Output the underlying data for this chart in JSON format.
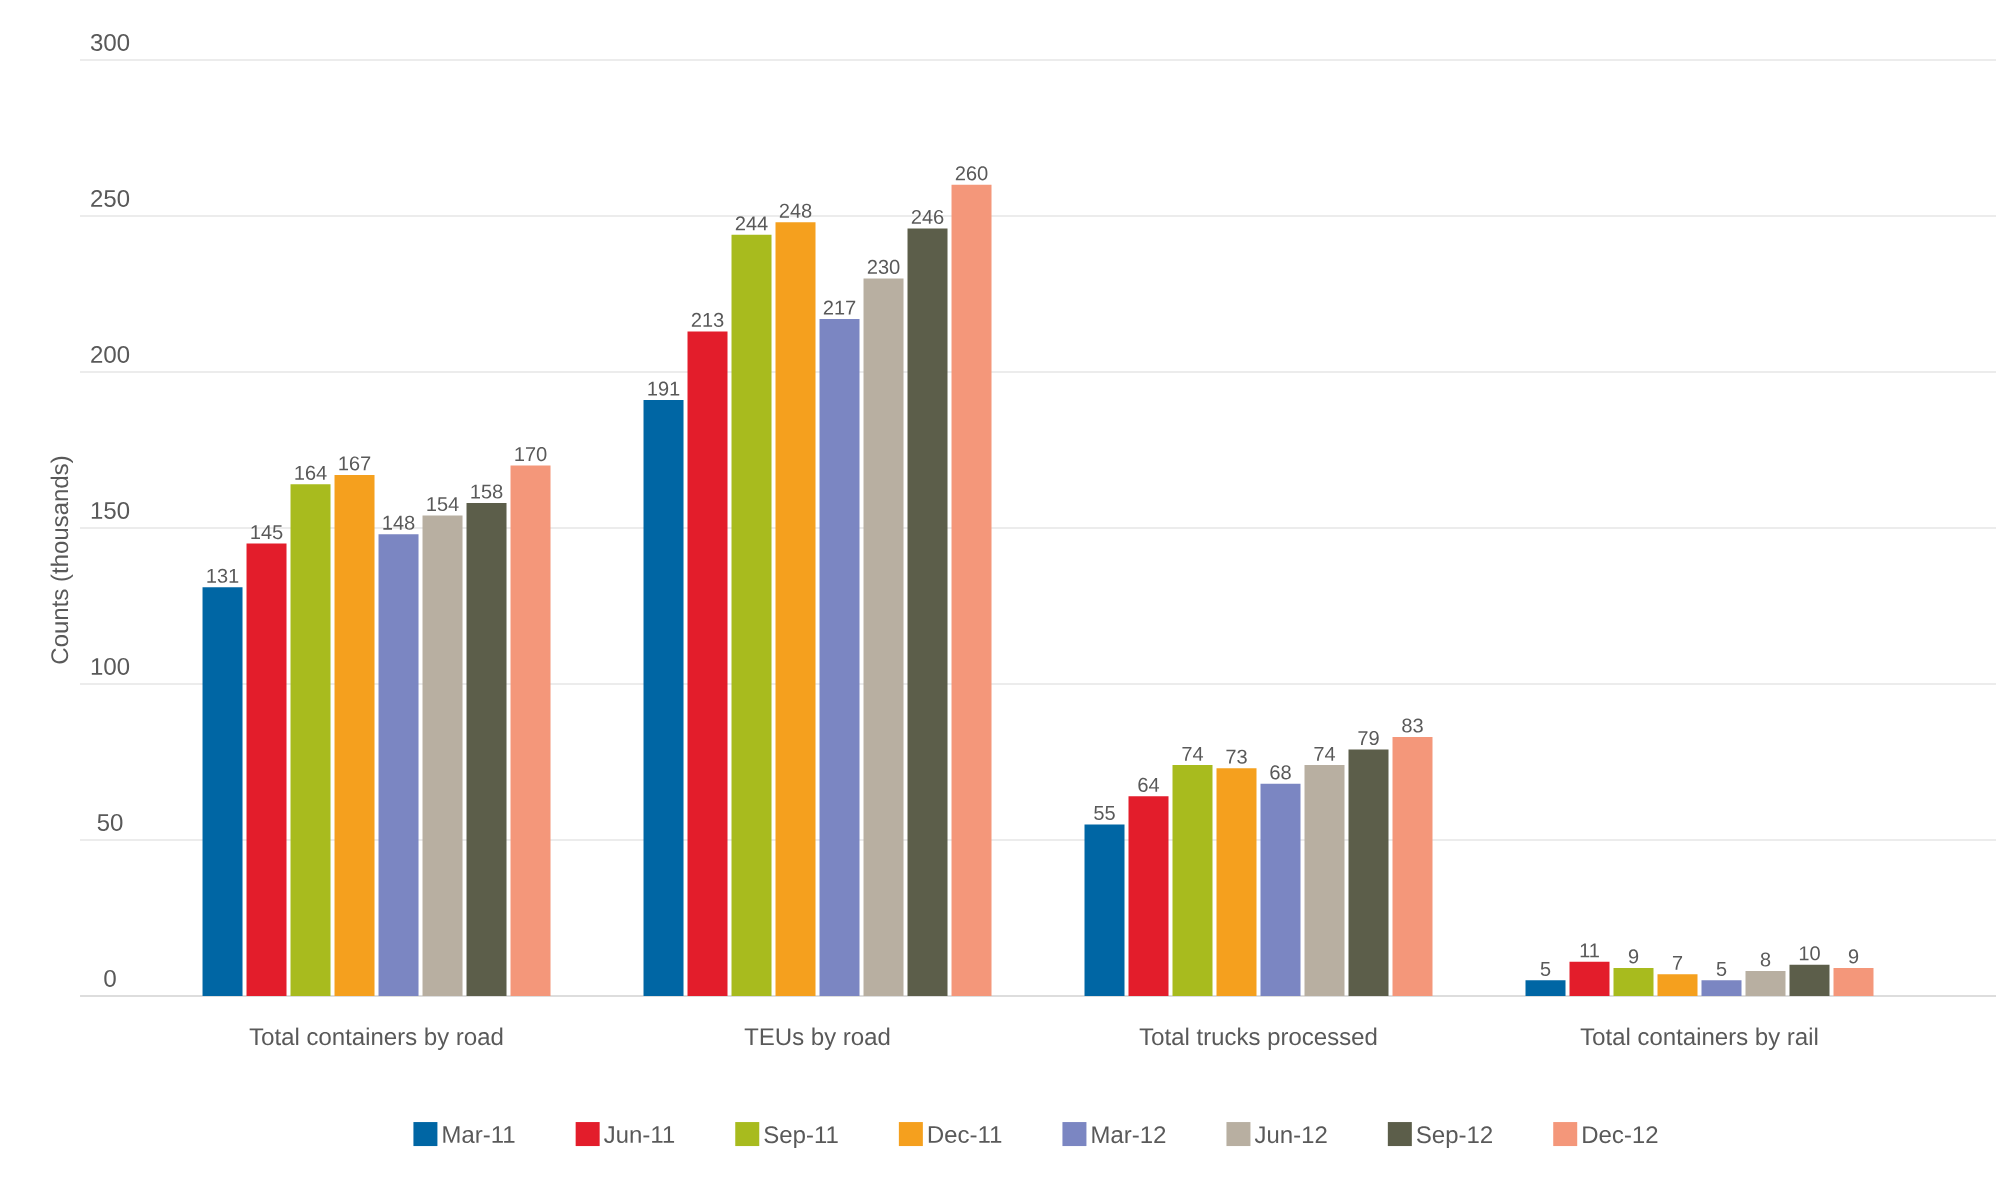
{
  "chart_data": {
    "type": "bar",
    "ylabel": "Counts (thousands)",
    "categories": [
      "Total containers by road",
      "TEUs by road",
      "Total trucks processed",
      "Total containers by rail"
    ],
    "series": [
      {
        "name": "Mar-11",
        "color": "#0066a4",
        "values": [
          131,
          191,
          55,
          5
        ]
      },
      {
        "name": "Jun-11",
        "color": "#e31d2b",
        "values": [
          145,
          213,
          64,
          11
        ]
      },
      {
        "name": "Sep-11",
        "color": "#a8bb1e",
        "values": [
          164,
          244,
          74,
          9
        ]
      },
      {
        "name": "Dec-11",
        "color": "#f5a01e",
        "values": [
          167,
          248,
          73,
          7
        ]
      },
      {
        "name": "Mar-12",
        "color": "#7b86c2",
        "values": [
          148,
          217,
          68,
          5
        ]
      },
      {
        "name": "Jun-12",
        "color": "#b8afa1",
        "values": [
          154,
          230,
          74,
          8
        ]
      },
      {
        "name": "Sep-12",
        "color": "#5c5e4a",
        "values": [
          158,
          246,
          79,
          10
        ]
      },
      {
        "name": "Dec-12",
        "color": "#f4977a",
        "values": [
          170,
          260,
          83,
          9
        ]
      }
    ],
    "ylim": [
      0,
      300
    ],
    "yticks": [
      0,
      50,
      100,
      150,
      200,
      250,
      300
    ],
    "grid": "y",
    "legend": "bottom",
    "data_labels": true
  }
}
